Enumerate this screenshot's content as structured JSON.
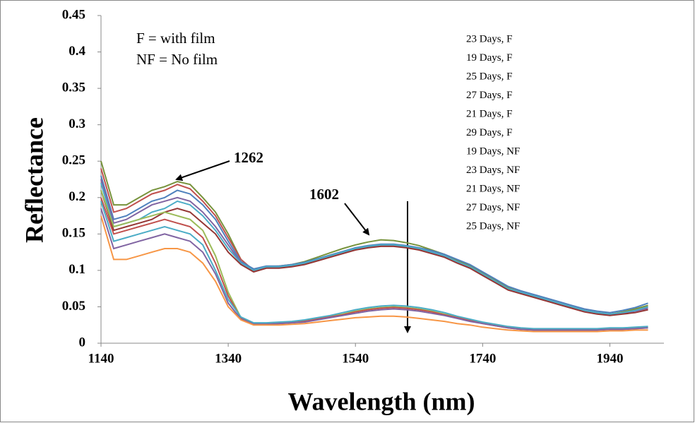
{
  "chart_data": {
    "type": "line",
    "xlabel": "Wavelength (nm)",
    "ylabel": "Reflectance",
    "annotations": [
      "F = with film",
      "NF = No film",
      "1262",
      "1602"
    ],
    "x": [
      1140,
      1160,
      1180,
      1200,
      1220,
      1240,
      1260,
      1280,
      1300,
      1320,
      1340,
      1360,
      1380,
      1400,
      1420,
      1440,
      1460,
      1480,
      1500,
      1520,
      1540,
      1560,
      1580,
      1600,
      1620,
      1640,
      1660,
      1680,
      1700,
      1720,
      1740,
      1760,
      1780,
      1800,
      1820,
      1840,
      1860,
      1880,
      1900,
      1920,
      1940,
      1960,
      1980,
      2000
    ],
    "xlim": [
      1140,
      2025
    ],
    "xticks": [
      1140,
      1340,
      1540,
      1740,
      1940
    ],
    "ylim": [
      0,
      0.45
    ],
    "yticks": [
      0,
      0.05,
      0.1,
      0.15,
      0.2,
      0.25,
      0.3,
      0.35,
      0.4,
      0.45
    ],
    "legend": "top-right",
    "series": [
      {
        "name": "23 Days, F",
        "color": "#77933c",
        "values": [
          0.25,
          0.19,
          0.19,
          0.2,
          0.21,
          0.215,
          0.222,
          0.218,
          0.2,
          0.18,
          0.15,
          0.115,
          0.1,
          0.105,
          0.106,
          0.108,
          0.112,
          0.118,
          0.124,
          0.13,
          0.135,
          0.139,
          0.142,
          0.141,
          0.138,
          0.134,
          0.128,
          0.122,
          0.114,
          0.106,
          0.096,
          0.086,
          0.076,
          0.07,
          0.065,
          0.06,
          0.055,
          0.05,
          0.045,
          0.042,
          0.04,
          0.043,
          0.047,
          0.052
        ]
      },
      {
        "name": "19 Days, F",
        "color": "#c0504d",
        "values": [
          0.24,
          0.18,
          0.185,
          0.195,
          0.205,
          0.21,
          0.218,
          0.212,
          0.195,
          0.175,
          0.145,
          0.115,
          0.1,
          0.105,
          0.105,
          0.107,
          0.11,
          0.115,
          0.12,
          0.125,
          0.13,
          0.133,
          0.135,
          0.135,
          0.133,
          0.13,
          0.125,
          0.12,
          0.112,
          0.105,
          0.095,
          0.085,
          0.075,
          0.07,
          0.065,
          0.06,
          0.055,
          0.05,
          0.045,
          0.042,
          0.04,
          0.042,
          0.045,
          0.05
        ]
      },
      {
        "name": "25 Days, F",
        "color": "#4f81bd",
        "values": [
          0.23,
          0.17,
          0.175,
          0.185,
          0.195,
          0.2,
          0.21,
          0.205,
          0.19,
          0.17,
          0.14,
          0.112,
          0.102,
          0.106,
          0.106,
          0.108,
          0.111,
          0.116,
          0.121,
          0.126,
          0.131,
          0.134,
          0.136,
          0.136,
          0.134,
          0.131,
          0.127,
          0.122,
          0.115,
          0.108,
          0.098,
          0.088,
          0.078,
          0.072,
          0.067,
          0.062,
          0.057,
          0.052,
          0.047,
          0.044,
          0.042,
          0.045,
          0.049,
          0.055
        ]
      },
      {
        "name": "27 Days, F",
        "color": "#8064a2",
        "values": [
          0.225,
          0.165,
          0.17,
          0.18,
          0.19,
          0.195,
          0.2,
          0.195,
          0.18,
          0.16,
          0.135,
          0.11,
          0.1,
          0.104,
          0.104,
          0.106,
          0.109,
          0.114,
          0.119,
          0.124,
          0.129,
          0.132,
          0.134,
          0.134,
          0.132,
          0.129,
          0.124,
          0.119,
          0.111,
          0.104,
          0.094,
          0.084,
          0.074,
          0.069,
          0.064,
          0.059,
          0.054,
          0.049,
          0.044,
          0.041,
          0.039,
          0.041,
          0.044,
          0.048
        ]
      },
      {
        "name": "21 Days, F",
        "color": "#4bacc6",
        "values": [
          0.22,
          0.16,
          0.165,
          0.17,
          0.18,
          0.185,
          0.195,
          0.19,
          0.175,
          0.155,
          0.13,
          0.11,
          0.1,
          0.105,
          0.105,
          0.107,
          0.11,
          0.115,
          0.12,
          0.125,
          0.13,
          0.133,
          0.135,
          0.135,
          0.133,
          0.13,
          0.125,
          0.12,
          0.112,
          0.105,
          0.095,
          0.085,
          0.075,
          0.07,
          0.065,
          0.06,
          0.055,
          0.05,
          0.045,
          0.042,
          0.04,
          0.042,
          0.045,
          0.05
        ]
      },
      {
        "name": "29 Days, F",
        "color": "#953735",
        "values": [
          0.21,
          0.155,
          0.16,
          0.165,
          0.17,
          0.18,
          0.185,
          0.18,
          0.165,
          0.15,
          0.125,
          0.108,
          0.098,
          0.103,
          0.103,
          0.105,
          0.108,
          0.113,
          0.118,
          0.123,
          0.128,
          0.131,
          0.133,
          0.133,
          0.131,
          0.128,
          0.123,
          0.118,
          0.11,
          0.103,
          0.093,
          0.083,
          0.073,
          0.068,
          0.063,
          0.058,
          0.053,
          0.048,
          0.043,
          0.04,
          0.038,
          0.04,
          0.042,
          0.046
        ]
      },
      {
        "name": "19 Days, NF",
        "color": "#9bbb59",
        "values": [
          0.21,
          0.16,
          0.165,
          0.17,
          0.175,
          0.18,
          0.175,
          0.17,
          0.155,
          0.12,
          0.07,
          0.035,
          0.027,
          0.027,
          0.028,
          0.029,
          0.031,
          0.034,
          0.037,
          0.04,
          0.044,
          0.047,
          0.049,
          0.05,
          0.049,
          0.047,
          0.044,
          0.04,
          0.036,
          0.032,
          0.028,
          0.025,
          0.022,
          0.02,
          0.019,
          0.019,
          0.019,
          0.019,
          0.019,
          0.019,
          0.02,
          0.02,
          0.021,
          0.022
        ]
      },
      {
        "name": "23 Days, NF",
        "color": "#c0504d",
        "values": [
          0.2,
          0.15,
          0.155,
          0.16,
          0.165,
          0.17,
          0.165,
          0.16,
          0.145,
          0.11,
          0.065,
          0.034,
          0.026,
          0.026,
          0.027,
          0.028,
          0.03,
          0.033,
          0.036,
          0.039,
          0.043,
          0.046,
          0.048,
          0.049,
          0.048,
          0.046,
          0.043,
          0.039,
          0.035,
          0.031,
          0.027,
          0.024,
          0.021,
          0.019,
          0.018,
          0.018,
          0.018,
          0.018,
          0.018,
          0.018,
          0.019,
          0.019,
          0.02,
          0.021
        ]
      },
      {
        "name": "21 Days, NF",
        "color": "#4bacc6",
        "values": [
          0.195,
          0.14,
          0.145,
          0.15,
          0.155,
          0.16,
          0.155,
          0.15,
          0.135,
          0.1,
          0.06,
          0.036,
          0.028,
          0.028,
          0.029,
          0.03,
          0.032,
          0.035,
          0.038,
          0.042,
          0.046,
          0.049,
          0.051,
          0.052,
          0.051,
          0.049,
          0.046,
          0.042,
          0.037,
          0.033,
          0.029,
          0.026,
          0.023,
          0.021,
          0.02,
          0.02,
          0.02,
          0.02,
          0.02,
          0.02,
          0.021,
          0.021,
          0.022,
          0.023
        ]
      },
      {
        "name": "27 Days, NF",
        "color": "#8064a2",
        "values": [
          0.185,
          0.13,
          0.135,
          0.14,
          0.145,
          0.15,
          0.145,
          0.14,
          0.125,
          0.095,
          0.055,
          0.033,
          0.026,
          0.026,
          0.027,
          0.028,
          0.029,
          0.032,
          0.035,
          0.038,
          0.041,
          0.044,
          0.046,
          0.047,
          0.046,
          0.044,
          0.041,
          0.038,
          0.034,
          0.03,
          0.027,
          0.024,
          0.021,
          0.019,
          0.018,
          0.018,
          0.018,
          0.018,
          0.018,
          0.018,
          0.019,
          0.019,
          0.02,
          0.021
        ]
      },
      {
        "name": "25 Days, NF",
        "color": "#f79646",
        "values": [
          0.175,
          0.115,
          0.115,
          0.12,
          0.125,
          0.13,
          0.13,
          0.125,
          0.11,
          0.085,
          0.05,
          0.032,
          0.025,
          0.025,
          0.025,
          0.026,
          0.027,
          0.029,
          0.031,
          0.033,
          0.035,
          0.036,
          0.037,
          0.037,
          0.036,
          0.034,
          0.032,
          0.03,
          0.027,
          0.025,
          0.022,
          0.02,
          0.018,
          0.017,
          0.016,
          0.016,
          0.016,
          0.016,
          0.016,
          0.016,
          0.017,
          0.017,
          0.018,
          0.018
        ]
      }
    ]
  }
}
